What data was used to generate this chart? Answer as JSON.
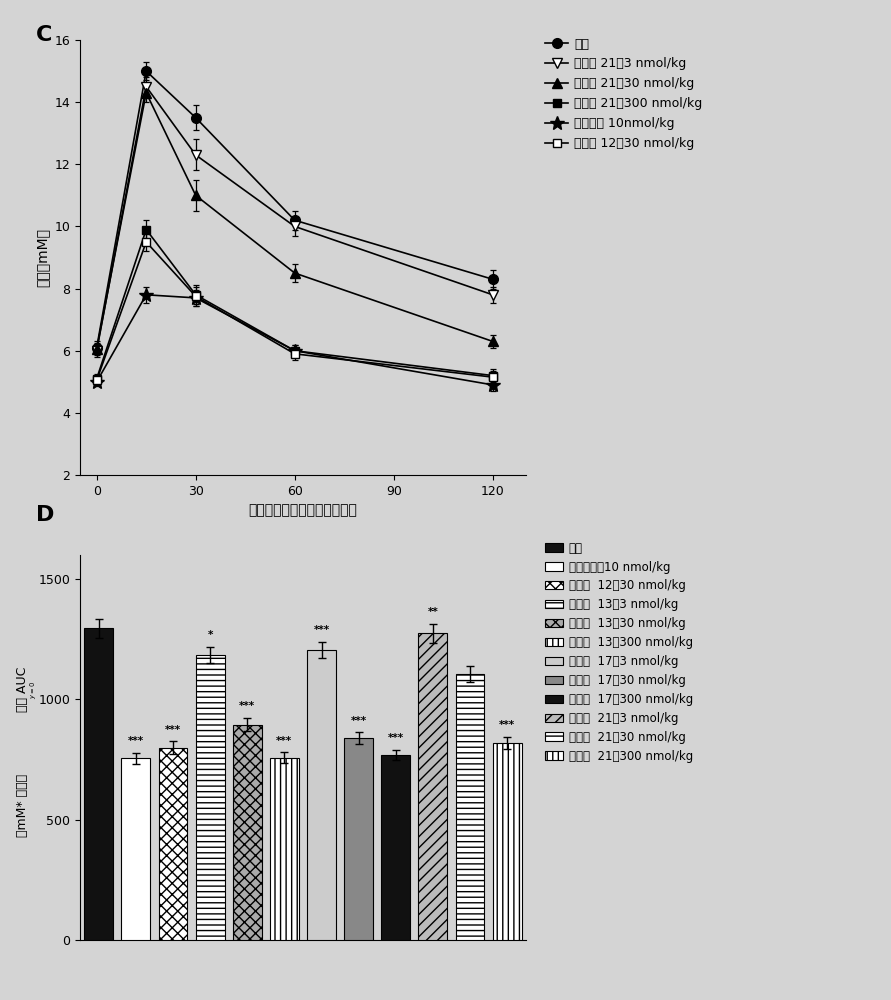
{
  "panel_c": {
    "xlabel": "葡萄糖负载后的时间（分钟）",
    "ylabel": "血糖（mM）",
    "xlim": [
      -5,
      130
    ],
    "ylim": [
      2,
      16
    ],
    "xticks": [
      0,
      30,
      60,
      90,
      120
    ],
    "xtick_labels": [
      "0",
      "30",
      "60",
      "90",
      "120"
    ],
    "yticks": [
      2,
      4,
      6,
      8,
      10,
      12,
      14,
      16
    ],
    "series": [
      {
        "label": "载剂",
        "marker": "o",
        "mfc": "#000000",
        "mec": "#000000",
        "ms": 7,
        "x": [
          0,
          15,
          30,
          60,
          120
        ],
        "y": [
          6.1,
          15.0,
          13.5,
          10.2,
          8.3
        ],
        "yerr": [
          0.2,
          0.3,
          0.4,
          0.3,
          0.3
        ]
      },
      {
        "label": "化合物 21，3 nmol/kg",
        "marker": "v",
        "mfc": "white",
        "mec": "#000000",
        "ms": 7,
        "x": [
          0,
          15,
          30,
          60,
          120
        ],
        "y": [
          6.0,
          14.5,
          12.3,
          10.0,
          7.8
        ],
        "yerr": [
          0.2,
          0.3,
          0.5,
          0.3,
          0.25
        ]
      },
      {
        "label": "化合物 21，30 nmol/kg",
        "marker": "^",
        "mfc": "#000000",
        "mec": "#000000",
        "ms": 7,
        "x": [
          0,
          15,
          30,
          60,
          120
        ],
        "y": [
          6.05,
          14.3,
          11.0,
          8.5,
          6.3
        ],
        "yerr": [
          0.2,
          0.3,
          0.5,
          0.3,
          0.2
        ]
      },
      {
        "label": "化合物 21，300 nmol/kg",
        "marker": "s",
        "mfc": "#000000",
        "mec": "#000000",
        "ms": 6,
        "x": [
          0,
          15,
          30,
          60,
          120
        ],
        "y": [
          5.1,
          9.9,
          7.8,
          6.0,
          5.2
        ],
        "yerr": [
          0.15,
          0.3,
          0.3,
          0.2,
          0.2
        ]
      },
      {
        "label": "利拉鲁肽 10nmol/kg",
        "marker": "*",
        "mfc": "#000000",
        "mec": "#000000",
        "ms": 10,
        "x": [
          0,
          15,
          30,
          60,
          120
        ],
        "y": [
          5.0,
          7.8,
          7.7,
          6.0,
          4.9
        ],
        "yerr": [
          0.15,
          0.25,
          0.25,
          0.2,
          0.2
        ]
      },
      {
        "label": "化合物 12，30 nmol/kg",
        "marker": "s",
        "mfc": "white",
        "mec": "#000000",
        "ms": 6,
        "x": [
          0,
          15,
          30,
          60,
          120
        ],
        "y": [
          5.05,
          9.5,
          7.75,
          5.9,
          5.15
        ],
        "yerr": [
          0.15,
          0.3,
          0.3,
          0.2,
          0.2
        ]
      }
    ]
  },
  "panel_d": {
    "ylabel1": "血糖 AUC",
    "ylabel2": "y=0",
    "ylabel3": "（mM*分钟）",
    "ylim": [
      0,
      1600
    ],
    "yticks": [
      0,
      500,
      1000,
      1500
    ],
    "bars": [
      {
        "value": 1295,
        "err": 38,
        "hatch": null,
        "facecolor": "#111111",
        "edgecolor": "#000000",
        "sig": ""
      },
      {
        "value": 755,
        "err": 22,
        "hatch": null,
        "facecolor": "#ffffff",
        "edgecolor": "#000000",
        "sig": "***"
      },
      {
        "value": 800,
        "err": 25,
        "hatch": "xxx",
        "facecolor": "#ffffff",
        "edgecolor": "#000000",
        "sig": "***"
      },
      {
        "value": 1185,
        "err": 32,
        "hatch": "---",
        "facecolor": "#ffffff",
        "edgecolor": "#000000",
        "sig": "*"
      },
      {
        "value": 895,
        "err": 28,
        "hatch": "xxx",
        "facecolor": "#aaaaaa",
        "edgecolor": "#000000",
        "sig": "***"
      },
      {
        "value": 758,
        "err": 22,
        "hatch": "|||",
        "facecolor": "#ffffff",
        "edgecolor": "#000000",
        "sig": "***"
      },
      {
        "value": 1205,
        "err": 35,
        "hatch": null,
        "facecolor": "#cccccc",
        "edgecolor": "#000000",
        "sig": "***"
      },
      {
        "value": 838,
        "err": 25,
        "hatch": null,
        "facecolor": "#888888",
        "edgecolor": "#000000",
        "sig": "***"
      },
      {
        "value": 768,
        "err": 22,
        "hatch": null,
        "facecolor": "#111111",
        "edgecolor": "#000000",
        "sig": "***"
      },
      {
        "value": 1275,
        "err": 40,
        "hatch": "///",
        "facecolor": "#bbbbbb",
        "edgecolor": "#000000",
        "sig": "**"
      },
      {
        "value": 1105,
        "err": 32,
        "hatch": "---",
        "facecolor": "#ffffff",
        "edgecolor": "#000000",
        "sig": ""
      },
      {
        "value": 818,
        "err": 25,
        "hatch": "|||",
        "facecolor": "#ffffff",
        "edgecolor": "#000000",
        "sig": "***"
      }
    ],
    "legend_items": [
      {
        "label": "载剂",
        "hatch": null,
        "facecolor": "#111111",
        "edgecolor": "#000000"
      },
      {
        "label": "利拉鲁肽，10 nmol/kg",
        "hatch": null,
        "facecolor": "#ffffff",
        "edgecolor": "#000000"
      },
      {
        "label": "化合物  12，30 nmol/kg",
        "hatch": "xxx",
        "facecolor": "#ffffff",
        "edgecolor": "#000000"
      },
      {
        "label": "化合物  13，3 nmol/kg",
        "hatch": "---",
        "facecolor": "#ffffff",
        "edgecolor": "#000000"
      },
      {
        "label": "化合物  13，30 nmol/kg",
        "hatch": "xxx",
        "facecolor": "#aaaaaa",
        "edgecolor": "#000000"
      },
      {
        "label": "化合物  13，300 nmol/kg",
        "hatch": "|||",
        "facecolor": "#ffffff",
        "edgecolor": "#000000"
      },
      {
        "label": "化合物  17，3 nmol/kg",
        "hatch": null,
        "facecolor": "#cccccc",
        "edgecolor": "#000000"
      },
      {
        "label": "化合物  17，30 nmol/kg",
        "hatch": null,
        "facecolor": "#888888",
        "edgecolor": "#000000"
      },
      {
        "label": "化合物  17，300 nmol/kg",
        "hatch": null,
        "facecolor": "#111111",
        "edgecolor": "#000000"
      },
      {
        "label": "化合物  21，3 nmol/kg",
        "hatch": "///",
        "facecolor": "#bbbbbb",
        "edgecolor": "#000000"
      },
      {
        "label": "化合物  21，30 nmol/kg",
        "hatch": "---",
        "facecolor": "#ffffff",
        "edgecolor": "#000000"
      },
      {
        "label": "化合物  21，300 nmol/kg",
        "hatch": "|||",
        "facecolor": "#ffffff",
        "edgecolor": "#000000"
      }
    ]
  },
  "bg_color": "#d4d4d4"
}
